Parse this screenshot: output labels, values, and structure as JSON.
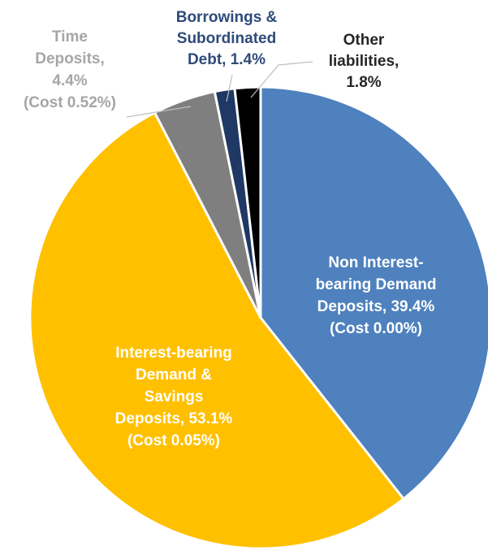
{
  "chart_data": {
    "type": "pie",
    "title": "",
    "start_angle_deg": 0,
    "direction": "clockwise",
    "slices": [
      {
        "name": "Non Interest-bearing Demand Deposits",
        "value": 39.4,
        "color": "#4e81bd",
        "label_color": "#ffffff",
        "label_lines": [
          "Non Interest-",
          "bearing Demand",
          "Deposits, 39.4%",
          "(Cost 0.00%)"
        ]
      },
      {
        "name": "Interest-bearing Demand & Savings Deposits",
        "value": 53.1,
        "color": "#ffc000",
        "label_color": "#ffffff",
        "label_lines": [
          "Interest-bearing",
          "Demand &",
          "Savings",
          "Deposits, 53.1%",
          "(Cost 0.05%)"
        ]
      },
      {
        "name": "Time Deposits",
        "value": 4.4,
        "color": "#7f7f7f",
        "label_color": "#a6a6a6",
        "label_lines": [
          "Time",
          "Deposits,",
          "4.4%",
          "(Cost 0.52%)"
        ]
      },
      {
        "name": "Borrowings & Subordinated Debt",
        "value": 1.4,
        "color": "#1f3864",
        "label_color": "#2e4b7a",
        "label_lines": [
          "Borrowings &",
          "Subordinated",
          "Debt, 1.4%"
        ]
      },
      {
        "name": "Other liabilities",
        "value": 1.8,
        "color": "#000000",
        "label_color": "#262626",
        "label_lines": [
          "Other",
          "liabilities,",
          "1.8%"
        ]
      }
    ]
  }
}
